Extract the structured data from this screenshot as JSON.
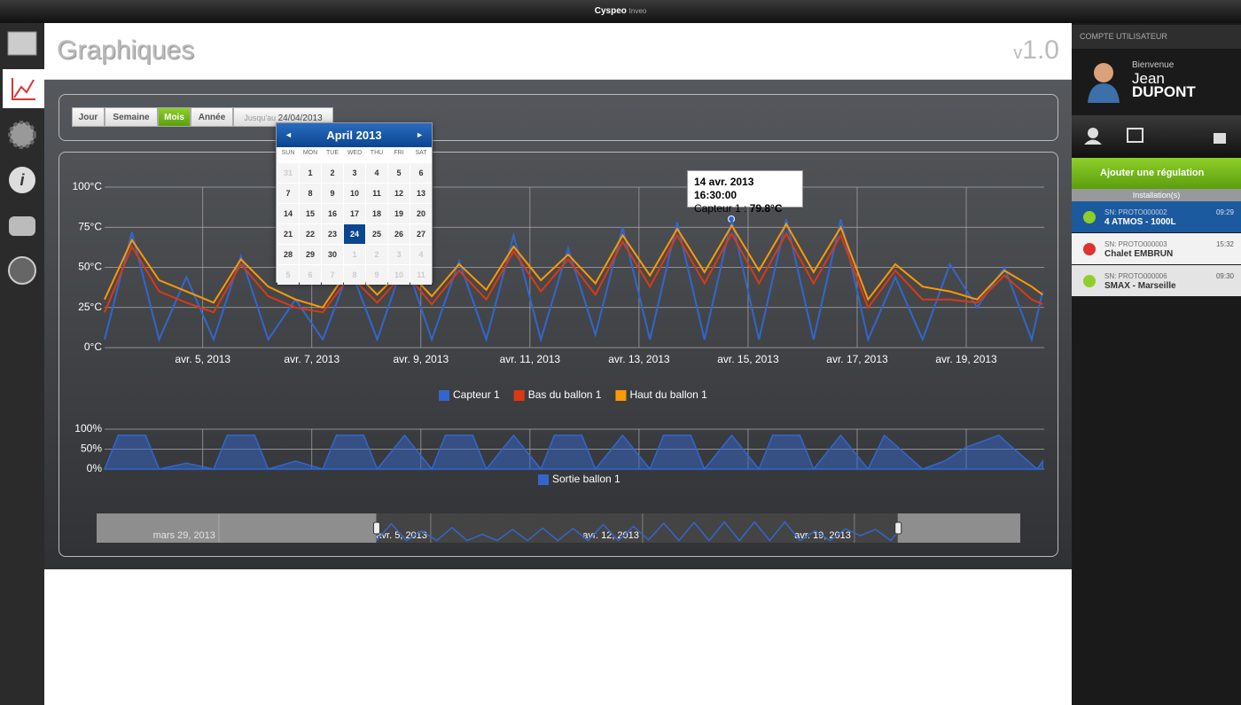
{
  "topbar": {
    "brand": "Cyspeo",
    "product": "Inveo"
  },
  "header": {
    "title": "Graphiques",
    "version_prefix": "v",
    "version": "1.0"
  },
  "controls": {
    "buttons": [
      "Jour",
      "Semaine",
      "Mois",
      "Année"
    ],
    "until_label": "Jusqu'au",
    "until_date": "24/04/2013"
  },
  "calendar": {
    "month": "April 2013",
    "prev": "◄",
    "next": "►",
    "weekdays": [
      "SUN",
      "MON",
      "TUE",
      "WED",
      "THU",
      "FRI",
      "SAT"
    ],
    "weeks": [
      [
        31,
        1,
        2,
        3,
        4,
        5,
        6
      ],
      [
        7,
        8,
        9,
        10,
        11,
        12,
        13
      ],
      [
        14,
        15,
        16,
        17,
        18,
        19,
        20
      ],
      [
        21,
        22,
        23,
        24,
        25,
        26,
        27
      ],
      [
        28,
        29,
        30,
        1,
        2,
        3,
        4
      ],
      [
        5,
        6,
        7,
        8,
        9,
        10,
        11
      ]
    ]
  },
  "tooltip": {
    "date": "14 avr. 2013 16:30:00",
    "series": "Capteur 1 : ",
    "value": "79.8°C"
  },
  "chart_data": [
    {
      "type": "line",
      "x": [
        3.2,
        3.7,
        4.2,
        4.7,
        5.2,
        5.7,
        6.2,
        6.7,
        7.2,
        7.7,
        8.2,
        8.7,
        9.2,
        9.7,
        10.2,
        10.7,
        11.2,
        11.7,
        12.2,
        12.7,
        13.2,
        13.7,
        14.2,
        14.7,
        15.2,
        15.7,
        16.2,
        16.7,
        17.2,
        17.7,
        18.2,
        18.7,
        19.2,
        19.7,
        20.2,
        20.4
      ],
      "xlim": [
        3.2,
        20.43
      ],
      "xticks": [
        {
          "value": 5,
          "label": "avr. 5, 2013"
        },
        {
          "value": 7,
          "label": "avr. 7, 2013"
        },
        {
          "value": 9,
          "label": "avr. 9, 2013"
        },
        {
          "value": 11,
          "label": "avr. 11, 2013"
        },
        {
          "value": 13,
          "label": "avr. 13, 2013"
        },
        {
          "value": 15,
          "label": "avr. 15, 2013"
        },
        {
          "value": 17,
          "label": "avr. 17, 2013"
        },
        {
          "value": 19,
          "label": "avr. 19, 2013"
        }
      ],
      "ylim": [
        0,
        100
      ],
      "yticks": [
        {
          "value": 0,
          "label": "0°C"
        },
        {
          "value": 25,
          "label": "25°C"
        },
        {
          "value": 50,
          "label": "50°C"
        },
        {
          "value": 75,
          "label": "75°C"
        },
        {
          "value": 100,
          "label": "100°C"
        }
      ],
      "grid": true,
      "series": [
        {
          "name": "Capteur 1",
          "color": "#3366cc",
          "values": [
            5,
            72,
            5,
            44,
            5,
            57,
            5,
            30,
            5,
            50,
            5,
            55,
            5,
            54,
            5,
            70,
            5,
            62,
            8,
            75,
            5,
            78,
            5,
            80,
            5,
            80,
            5,
            80,
            5,
            44,
            5,
            52,
            25,
            50,
            5,
            35
          ]
        },
        {
          "name": "Bas du ballon 1",
          "color": "#dc3912",
          "values": [
            22,
            63,
            35,
            28,
            22,
            52,
            32,
            25,
            22,
            45,
            28,
            47,
            27,
            48,
            30,
            60,
            35,
            55,
            33,
            66,
            38,
            70,
            40,
            71,
            40,
            71,
            40,
            70,
            25,
            48,
            30,
            30,
            28,
            45,
            30,
            27
          ]
        },
        {
          "name": "Haut du ballon 1",
          "color": "#ff9900",
          "values": [
            30,
            67,
            42,
            35,
            28,
            55,
            38,
            30,
            25,
            50,
            33,
            50,
            32,
            52,
            36,
            63,
            42,
            58,
            40,
            70,
            45,
            74,
            47,
            76,
            48,
            77,
            47,
            75,
            30,
            52,
            38,
            35,
            30,
            48,
            38,
            33
          ]
        }
      ]
    },
    {
      "type": "area",
      "x": [
        3.2,
        3.45,
        3.95,
        4.2,
        4.7,
        5.2,
        5.45,
        5.95,
        6.2,
        6.7,
        7.2,
        7.45,
        7.95,
        8.2,
        8.7,
        9.2,
        9.45,
        9.95,
        10.2,
        10.7,
        11.2,
        11.45,
        11.95,
        12.2,
        12.7,
        13.2,
        13.45,
        13.95,
        14.2,
        14.7,
        15.2,
        15.45,
        15.95,
        16.2,
        16.7,
        17.2,
        17.5,
        18.2,
        18.6,
        19.0,
        19.6,
        19.8,
        20.3,
        20.4
      ],
      "ylim": [
        0,
        100
      ],
      "yticks": [
        {
          "value": 0,
          "label": "0%"
        },
        {
          "value": 50,
          "label": "50%"
        },
        {
          "value": 100,
          "label": "100%"
        }
      ],
      "grid": true,
      "series": [
        {
          "name": "Sortie ballon 1",
          "color": "#3366cc",
          "values": [
            0,
            85,
            85,
            0,
            15,
            0,
            85,
            85,
            0,
            20,
            0,
            85,
            85,
            0,
            85,
            0,
            85,
            85,
            0,
            85,
            0,
            85,
            85,
            0,
            85,
            0,
            85,
            85,
            0,
            85,
            0,
            85,
            85,
            0,
            85,
            0,
            85,
            0,
            20,
            55,
            85,
            60,
            0,
            20
          ]
        }
      ]
    }
  ],
  "navigator": {
    "xlim": [
      -6.04,
      24.48
    ],
    "xticks": [
      {
        "value": -2,
        "label": "mars 29, 2013"
      },
      {
        "value": 5,
        "label": "avr. 5, 2013"
      },
      {
        "value": 12,
        "label": "avr. 12, 2013"
      },
      {
        "value": 19,
        "label": "avr. 19, 2013"
      }
    ]
  },
  "sidebar": {
    "section": "COMPTE UTILISATEUR",
    "welcome": "Bienvenue",
    "first_name": "Jean",
    "last_name": "DUPONT",
    "add_button": "Ajouter une régulation",
    "installations_title": "Installation(s)",
    "installations": [
      {
        "sn": "SN: PROTO000002",
        "name": "4 ATMOS - 1000L",
        "time": "09:29"
      },
      {
        "sn": "SN: PROTO000003",
        "name": "Chalet EMBRUN",
        "time": "15:32"
      },
      {
        "sn": "SN: PROTO000006",
        "name": "SMAX - Marseille",
        "time": "09:30"
      }
    ]
  }
}
